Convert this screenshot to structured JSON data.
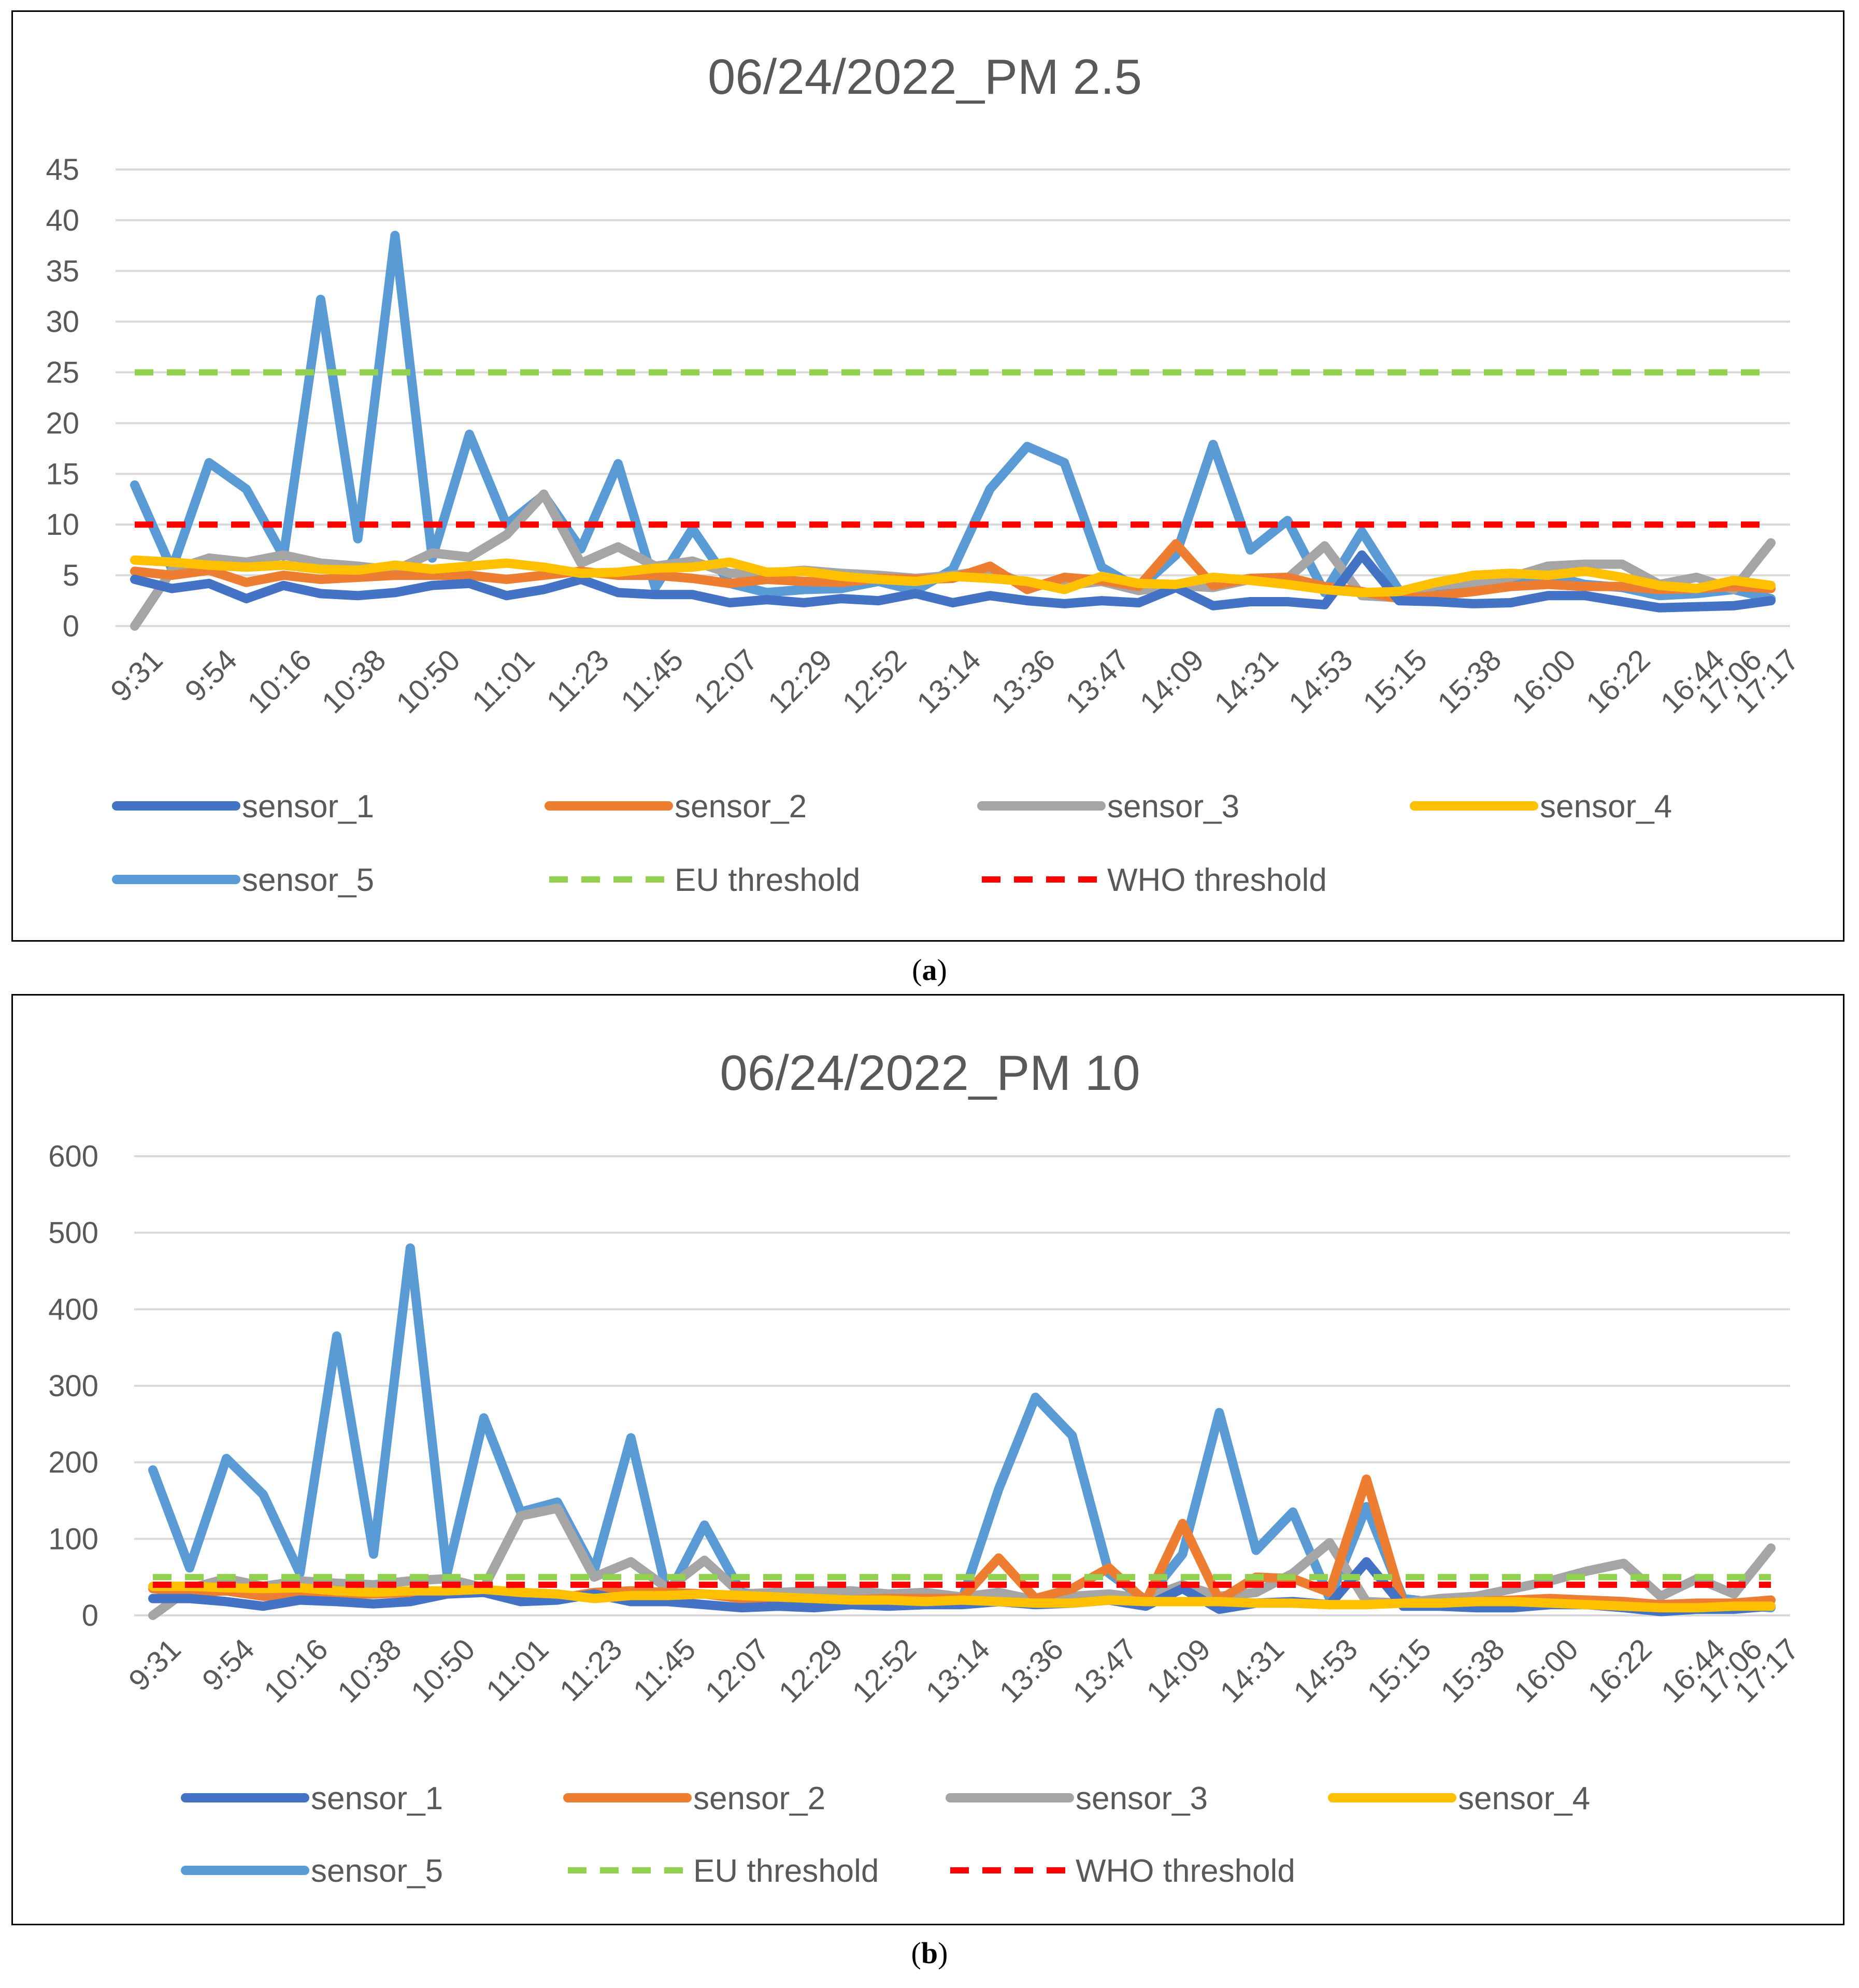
{
  "colors": {
    "sensor_1": "#4472C4",
    "sensor_2": "#ED7D31",
    "sensor_3": "#A5A5A5",
    "sensor_4": "#FFC000",
    "sensor_5": "#5B9BD5",
    "eu": "#92D050",
    "who": "#FF0000",
    "grid": "#D9D9D9",
    "text": "#595959"
  },
  "captions": {
    "a": "a",
    "b": "b"
  },
  "chart_data": [
    {
      "type": "line",
      "title": "06/24/2022_PM 2.5",
      "xlabel": "",
      "ylabel": "",
      "ylim": [
        0,
        45
      ],
      "yticks": [
        0,
        5,
        10,
        15,
        20,
        25,
        30,
        35,
        40,
        45
      ],
      "point_count": 45,
      "tick_labels": [
        "9:31",
        "9:54",
        "10:16",
        "10:38",
        "10:50",
        "11:01",
        "11:23",
        "11:45",
        "12:07",
        "12:29",
        "12:52",
        "13:14",
        "13:36",
        "13:47",
        "14:09",
        "14:31",
        "14:53",
        "15:15",
        "15:38",
        "16:00",
        "16:22",
        "16:44",
        "17:06",
        "17:17"
      ],
      "tick_positions": [
        0,
        2,
        4,
        6,
        8,
        10,
        12,
        14,
        16,
        18,
        20,
        22,
        24,
        26,
        28,
        30,
        32,
        34,
        36,
        38,
        40,
        42,
        43,
        44
      ],
      "legend": [
        "sensor_1",
        "sensor_2",
        "sensor_3",
        "sensor_4",
        "sensor_5",
        "EU threshold",
        "WHO threshold"
      ],
      "series": [
        {
          "name": "sensor_1",
          "values": [
            4.6,
            3.7,
            4.2,
            2.7,
            4.0,
            3.2,
            3.0,
            3.3,
            4.0,
            4.2,
            3.0,
            3.6,
            4.6,
            3.3,
            3.1,
            3.1,
            2.3,
            2.6,
            2.3,
            2.7,
            2.5,
            3.2,
            2.3,
            3.0,
            2.5,
            2.2,
            2.5,
            2.3,
            3.8,
            2.0,
            2.4,
            2.4,
            2.1,
            7.0,
            2.5,
            2.4,
            2.2,
            2.3,
            3.0,
            3.0,
            2.4,
            1.8,
            1.9,
            2.0,
            2.5
          ]
        },
        {
          "name": "sensor_2",
          "values": [
            5.4,
            5.0,
            5.5,
            4.3,
            5.0,
            4.6,
            4.8,
            5.0,
            5.0,
            5.0,
            4.6,
            5.0,
            5.4,
            5.0,
            5.0,
            4.7,
            4.2,
            4.6,
            4.4,
            4.3,
            4.7,
            4.6,
            4.7,
            5.9,
            3.6,
            4.8,
            4.5,
            3.9,
            8.1,
            4.0,
            4.7,
            4.8,
            3.9,
            3.4,
            2.7,
            3.0,
            3.4,
            3.9,
            4.1,
            3.9,
            3.9,
            3.6,
            3.7,
            3.9,
            3.7
          ]
        },
        {
          "name": "sensor_3",
          "values": [
            0.0,
            5.5,
            6.7,
            6.3,
            7.0,
            6.2,
            5.9,
            5.5,
            7.2,
            6.8,
            9.0,
            13.0,
            6.2,
            7.8,
            5.9,
            6.4,
            5.2,
            5.2,
            5.5,
            5.2,
            5.0,
            4.7,
            5.0,
            5.5,
            4.1,
            4.0,
            4.4,
            3.5,
            4.0,
            3.8,
            4.6,
            4.7,
            7.9,
            3.0,
            2.8,
            4.0,
            4.3,
            4.8,
            5.9,
            6.1,
            6.1,
            4.1,
            4.8,
            3.6,
            8.2
          ]
        },
        {
          "name": "sensor_4",
          "values": [
            6.5,
            6.3,
            6.0,
            5.8,
            6.0,
            5.6,
            5.5,
            6.0,
            5.6,
            5.9,
            6.2,
            5.8,
            5.2,
            5.3,
            5.7,
            5.8,
            6.3,
            5.3,
            5.4,
            4.9,
            4.6,
            4.4,
            4.9,
            4.7,
            4.4,
            3.6,
            4.9,
            4.2,
            4.1,
            4.8,
            4.5,
            4.1,
            3.6,
            3.3,
            3.4,
            4.3,
            5.0,
            5.2,
            5.0,
            5.4,
            4.8,
            4.0,
            3.7,
            4.5,
            4.0
          ]
        },
        {
          "name": "sensor_5",
          "values": [
            13.9,
            5.6,
            16.1,
            13.5,
            6.9,
            32.2,
            8.6,
            38.5,
            6.7,
            18.9,
            10.0,
            12.9,
            7.6,
            16.0,
            3.8,
            9.6,
            4.2,
            3.3,
            3.6,
            3.7,
            4.4,
            3.5,
            5.6,
            13.5,
            17.7,
            16.1,
            5.8,
            3.7,
            7.0,
            17.9,
            7.5,
            10.4,
            3.3,
            9.3,
            3.5,
            3.4,
            3.9,
            4.5,
            5.0,
            4.1,
            3.8,
            3.0,
            3.2,
            3.6,
            2.7
          ]
        },
        {
          "name": "EU threshold",
          "constant": 25,
          "dashed": true
        },
        {
          "name": "WHO threshold",
          "constant": 10,
          "dashed": true
        }
      ]
    },
    {
      "type": "line",
      "title": "06/24/2022_PM 10",
      "xlabel": "",
      "ylabel": "",
      "ylim": [
        0,
        600
      ],
      "yticks": [
        0,
        100,
        200,
        300,
        400,
        500,
        600
      ],
      "point_count": 45,
      "tick_labels": [
        "9:31",
        "9:54",
        "10:16",
        "10:38",
        "10:50",
        "11:01",
        "11:23",
        "11:45",
        "12:07",
        "12:29",
        "12:52",
        "13:14",
        "13:36",
        "13:47",
        "14:09",
        "14:31",
        "14:53",
        "15:15",
        "15:38",
        "16:00",
        "16:22",
        "16:44",
        "17:06",
        "17:17"
      ],
      "tick_positions": [
        0,
        2,
        4,
        6,
        8,
        10,
        12,
        14,
        16,
        18,
        20,
        22,
        24,
        26,
        28,
        30,
        32,
        34,
        36,
        38,
        40,
        42,
        43,
        44
      ],
      "legend": [
        "sensor_1",
        "sensor_2",
        "sensor_3",
        "sensor_4",
        "sensor_5",
        "EU threshold",
        "WHO threshold"
      ],
      "series": [
        {
          "name": "sensor_1",
          "values": [
            22,
            22,
            18,
            12,
            20,
            18,
            15,
            18,
            28,
            30,
            18,
            20,
            28,
            18,
            18,
            14,
            10,
            12,
            10,
            14,
            12,
            14,
            14,
            18,
            14,
            16,
            20,
            12,
            35,
            8,
            16,
            18,
            14,
            70,
            12,
            12,
            10,
            10,
            14,
            14,
            10,
            5,
            8,
            8,
            12
          ]
        },
        {
          "name": "sensor_2",
          "values": [
            35,
            30,
            32,
            25,
            28,
            28,
            28,
            30,
            30,
            32,
            26,
            22,
            30,
            32,
            30,
            28,
            22,
            20,
            20,
            20,
            22,
            22,
            22,
            75,
            22,
            35,
            62,
            18,
            120,
            20,
            50,
            48,
            30,
            178,
            14,
            16,
            18,
            20,
            22,
            20,
            18,
            14,
            16,
            16,
            20
          ]
        },
        {
          "name": "sensor_3",
          "values": [
            0,
            35,
            48,
            38,
            45,
            42,
            40,
            45,
            48,
            36,
            130,
            140,
            50,
            70,
            35,
            72,
            28,
            30,
            32,
            32,
            28,
            30,
            24,
            30,
            20,
            25,
            28,
            22,
            40,
            25,
            30,
            55,
            95,
            18,
            16,
            22,
            25,
            35,
            45,
            58,
            68,
            25,
            48,
            28,
            88
          ]
        },
        {
          "name": "sensor_4",
          "values": [
            38,
            38,
            36,
            35,
            36,
            32,
            30,
            32,
            32,
            34,
            30,
            28,
            22,
            26,
            26,
            28,
            26,
            24,
            22,
            20,
            20,
            18,
            20,
            18,
            16,
            16,
            20,
            18,
            18,
            18,
            16,
            16,
            14,
            14,
            16,
            16,
            18,
            18,
            16,
            14,
            12,
            10,
            10,
            12,
            12
          ]
        },
        {
          "name": "sensor_5",
          "values": [
            190,
            62,
            205,
            158,
            55,
            365,
            80,
            480,
            55,
            258,
            135,
            148,
            58,
            232,
            25,
            118,
            30,
            24,
            22,
            20,
            18,
            25,
            20,
            165,
            285,
            235,
            55,
            20,
            80,
            265,
            85,
            135,
            22,
            142,
            22,
            16,
            18,
            18,
            20,
            20,
            16,
            12,
            12,
            14,
            10
          ]
        },
        {
          "name": "EU threshold",
          "constant": 50,
          "dashed": true
        },
        {
          "name": "WHO threshold",
          "constant": 40,
          "dashed": true
        }
      ]
    }
  ]
}
